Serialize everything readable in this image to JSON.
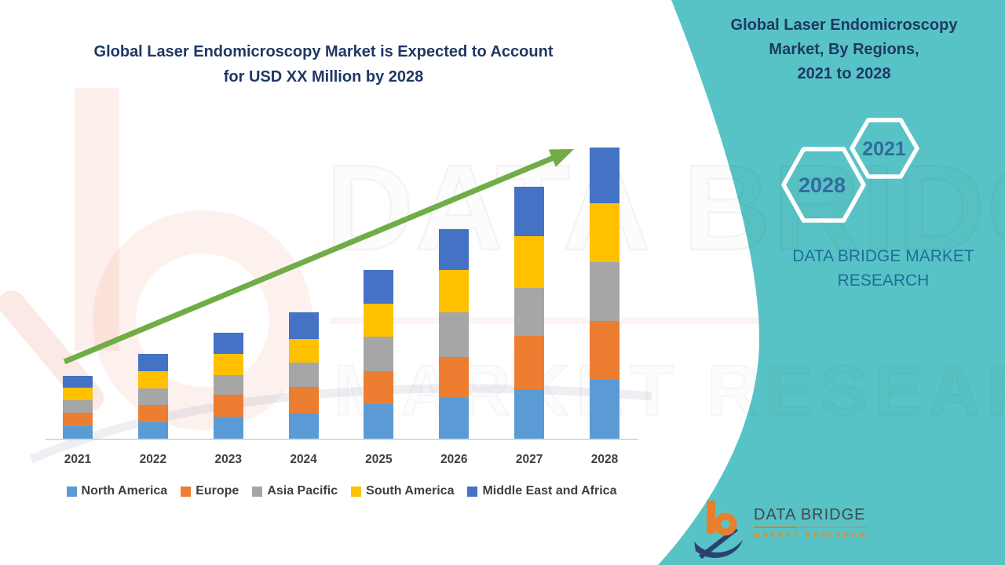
{
  "chart": {
    "title_line1": "Global Laser Endomicroscopy Market is Expected to Account",
    "title_line2": "for USD XX Million by 2028",
    "title_color": "#1F3864"
  },
  "chart_data": {
    "type": "bar",
    "subtype": "stacked-column",
    "title": "Global Laser Endomicroscopy Market is Expected to Account for USD XX Million by 2028",
    "xlabel": "",
    "ylabel": "",
    "y_axis": "hidden (values unlabeled, market size in USD XX Million)",
    "ylim": [
      0,
      100
    ],
    "gridlines": false,
    "legend_position": "bottom",
    "categories": [
      "2021",
      "2022",
      "2023",
      "2024",
      "2025",
      "2026",
      "2027",
      "2028"
    ],
    "series": [
      {
        "name": "North America",
        "color": "#5B9BD5",
        "values": [
          4.3,
          5.6,
          7.5,
          8.6,
          11.9,
          14.1,
          17.0,
          20.2
        ]
      },
      {
        "name": "Europe",
        "color": "#ED7D31",
        "values": [
          4.6,
          6.0,
          7.6,
          9.2,
          11.3,
          13.9,
          18.2,
          20.2
        ]
      },
      {
        "name": "Asia Pacific",
        "color": "#A6A6A6",
        "values": [
          4.3,
          5.7,
          6.7,
          8.3,
          11.9,
          15.3,
          16.6,
          20.2
        ]
      },
      {
        "name": "South America",
        "color": "#FFC000",
        "values": [
          4.2,
          6.0,
          7.2,
          8.1,
          11.2,
          14.6,
          17.7,
          20.3
        ]
      },
      {
        "name": "Middle East and Africa",
        "color": "#4472C4",
        "values": [
          4.1,
          5.7,
          7.3,
          9.2,
          11.7,
          14.2,
          16.9,
          19.1
        ]
      }
    ],
    "totals_relative_units": [
      21.5,
      29.0,
      36.3,
      43.4,
      58.0,
      72.1,
      86.4,
      100.0
    ],
    "trend_arrow": {
      "present": true,
      "color": "#70AD47",
      "direction": "up-right"
    }
  },
  "side_panel": {
    "bg_color": "#58C3C6",
    "title_line1": "Global Laser Endomicroscopy",
    "title_line2": "Market, By Regions,",
    "title_line3": "2021 to 2028",
    "title_color": "#1F3864",
    "badge_start_year": "2021",
    "badge_end_year": "2028",
    "badge_text_color": "#336B9E",
    "brand_line1": "DATA BRIDGE MARKET",
    "brand_line2": "RESEARCH",
    "brand_color": "#1D6F99"
  },
  "footer_logo": {
    "name": "DATA BRIDGE",
    "subtitle": "MARKET RESEARCH",
    "icon_orange": "#E87E2E",
    "icon_navy": "#2B4170"
  },
  "watermark": {
    "line1": "DATA BRIDGE",
    "line2": "MARKET RESEARCH"
  }
}
